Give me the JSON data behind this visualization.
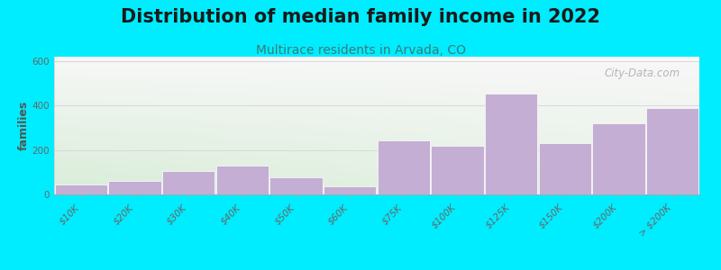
{
  "title": "Distribution of median family income in 2022",
  "subtitle": "Multirace residents in Arvada, CO",
  "watermark": "City-Data.com",
  "ylabel": "families",
  "categories": [
    "$10K",
    "$20K",
    "$30K",
    "$40K",
    "$50K",
    "$60K",
    "$75K",
    "$100K",
    "$125K",
    "$150K",
    "$200K",
    "> $200K"
  ],
  "widths": [
    1,
    1,
    1,
    1,
    1,
    1,
    1,
    1,
    1,
    1,
    1,
    1
  ],
  "values": [
    45,
    60,
    105,
    130,
    75,
    38,
    245,
    220,
    455,
    230,
    320,
    390
  ],
  "bar_color": "#c4aed4",
  "bar_edge_color": "#c4aed4",
  "background_outer": "#00ecff",
  "background_inner_topleft": "#d8edd8",
  "background_inner_right": "#f8f8f8",
  "ylim": [
    0,
    620
  ],
  "yticks": [
    0,
    200,
    400,
    600
  ],
  "title_fontsize": 15,
  "subtitle_fontsize": 10,
  "ylabel_fontsize": 9,
  "tick_label_fontsize": 7.5,
  "title_color": "#1a1a1a",
  "subtitle_color": "#3a7a7a",
  "ylabel_color": "#555555",
  "watermark_color": "#aaaaaa",
  "grid_color": "#d8d8d8",
  "tick_color": "#666666"
}
